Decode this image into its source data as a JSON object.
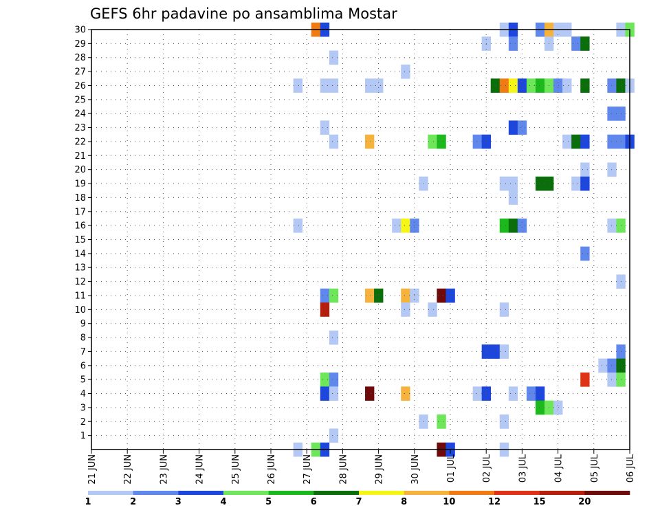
{
  "chart_data": {
    "type": "heatmap",
    "title": "GEFS 6hr padavine po ansamblima Mostar",
    "xlabel": "",
    "ylabel": "",
    "x_ticks": [
      "21 JUN",
      "22 JUN",
      "23 JUN",
      "24 JUN",
      "25 JUN",
      "26 JUN",
      "27 JUN",
      "28 JUN",
      "29 JUN",
      "30 JUN",
      "01 JUL",
      "02 JUL",
      "03 JUL",
      "04 JUL",
      "05 JUL",
      "06 JUL"
    ],
    "y_ticks": [
      "1",
      "2",
      "3",
      "4",
      "5",
      "6",
      "7",
      "8",
      "9",
      "10",
      "11",
      "12",
      "13",
      "14",
      "15",
      "16",
      "17",
      "18",
      "19",
      "20",
      "21",
      "22",
      "23",
      "24",
      "25",
      "26",
      "27",
      "28",
      "29",
      "30"
    ],
    "xlim": [
      0,
      60
    ],
    "ylim": [
      0,
      30
    ],
    "x_unit": "6-hour step from 21 JUN 00Z",
    "grid": true,
    "colorbar": {
      "labels": [
        "1",
        "2",
        "3",
        "4",
        "5",
        "6",
        "7",
        "8",
        "10",
        "12",
        "15",
        "20"
      ],
      "colors": [
        "#b4c8f5",
        "#5f87ec",
        "#1c46dc",
        "#6ee65a",
        "#1cb91c",
        "#0a6e0a",
        "#f5f516",
        "#f5b23c",
        "#f07a14",
        "#e03214",
        "#b41e0a",
        "#6e0a0a"
      ]
    },
    "cells": [
      [
        25,
        30,
        "orange"
      ],
      [
        26,
        30,
        "blue"
      ],
      [
        46,
        30,
        "pale"
      ],
      [
        47,
        30,
        "blue"
      ],
      [
        50,
        30,
        "mid"
      ],
      [
        51,
        30,
        "orange_light"
      ],
      [
        52,
        30,
        "pale"
      ],
      [
        53,
        30,
        "pale"
      ],
      [
        59,
        30,
        "pale"
      ],
      [
        60,
        30,
        "ltgreen"
      ],
      [
        44,
        29,
        "pale"
      ],
      [
        47,
        29,
        "mid"
      ],
      [
        51,
        29,
        "pale"
      ],
      [
        54,
        29,
        "mid"
      ],
      [
        55,
        29,
        "dkgreen"
      ],
      [
        27,
        28,
        "pale"
      ],
      [
        35,
        27,
        "pale"
      ],
      [
        23,
        26,
        "pale"
      ],
      [
        26,
        26,
        "pale"
      ],
      [
        27,
        26,
        "pale"
      ],
      [
        31,
        26,
        "pale"
      ],
      [
        32,
        26,
        "pale"
      ],
      [
        45,
        26,
        "dkgreen"
      ],
      [
        46,
        26,
        "orange"
      ],
      [
        47,
        26,
        "yellow"
      ],
      [
        48,
        26,
        "blue"
      ],
      [
        49,
        26,
        "ltgreen"
      ],
      [
        50,
        26,
        "green"
      ],
      [
        51,
        26,
        "ltgreen"
      ],
      [
        52,
        26,
        "mid"
      ],
      [
        53,
        26,
        "pale"
      ],
      [
        55,
        26,
        "dkgreen"
      ],
      [
        58,
        26,
        "mid"
      ],
      [
        59,
        26,
        "dkgreen"
      ],
      [
        60,
        26,
        "pale"
      ],
      [
        58,
        24,
        "mid"
      ],
      [
        59,
        24,
        "mid"
      ],
      [
        26,
        23,
        "pale"
      ],
      [
        47,
        23,
        "blue"
      ],
      [
        48,
        23,
        "mid"
      ],
      [
        27,
        22,
        "pale"
      ],
      [
        31,
        22,
        "orange_light"
      ],
      [
        38,
        22,
        "ltgreen"
      ],
      [
        39,
        22,
        "green"
      ],
      [
        43,
        22,
        "mid"
      ],
      [
        44,
        22,
        "blue"
      ],
      [
        53,
        22,
        "pale"
      ],
      [
        54,
        22,
        "dkgreen"
      ],
      [
        55,
        22,
        "blue"
      ],
      [
        58,
        22,
        "mid"
      ],
      [
        59,
        22,
        "mid"
      ],
      [
        60,
        22,
        "blue"
      ],
      [
        55,
        20,
        "pale"
      ],
      [
        58,
        20,
        "pale"
      ],
      [
        37,
        19,
        "pale"
      ],
      [
        46,
        19,
        "pale"
      ],
      [
        47,
        19,
        "pale"
      ],
      [
        50,
        19,
        "dkgreen"
      ],
      [
        51,
        19,
        "dkgreen"
      ],
      [
        54,
        19,
        "pale"
      ],
      [
        55,
        19,
        "blue"
      ],
      [
        47,
        18,
        "pale"
      ],
      [
        23,
        16,
        "pale"
      ],
      [
        34,
        16,
        "pale"
      ],
      [
        35,
        16,
        "yellow"
      ],
      [
        36,
        16,
        "mid"
      ],
      [
        46,
        16,
        "green"
      ],
      [
        47,
        16,
        "dkgreen"
      ],
      [
        48,
        16,
        "mid"
      ],
      [
        58,
        16,
        "pale"
      ],
      [
        59,
        16,
        "ltgreen"
      ],
      [
        55,
        14,
        "mid"
      ],
      [
        59,
        12,
        "pale"
      ],
      [
        26,
        11,
        "mid"
      ],
      [
        27,
        11,
        "ltgreen"
      ],
      [
        31,
        11,
        "orange_light"
      ],
      [
        32,
        11,
        "dkgreen"
      ],
      [
        35,
        11,
        "orange_light"
      ],
      [
        36,
        11,
        "pale"
      ],
      [
        39,
        11,
        "darkred"
      ],
      [
        40,
        11,
        "blue"
      ],
      [
        26,
        10,
        "red"
      ],
      [
        35,
        10,
        "pale"
      ],
      [
        38,
        10,
        "pale"
      ],
      [
        46,
        10,
        "pale"
      ],
      [
        27,
        8,
        "pale"
      ],
      [
        45,
        7,
        "blue"
      ],
      [
        46,
        7,
        "pale"
      ],
      [
        44,
        7,
        "blue"
      ],
      [
        59,
        7,
        "mid"
      ],
      [
        57,
        6,
        "pale"
      ],
      [
        58,
        6,
        "mid"
      ],
      [
        59,
        6,
        "dkgreen"
      ],
      [
        26,
        5,
        "ltgreen"
      ],
      [
        27,
        5,
        "mid"
      ],
      [
        55,
        5,
        "red_orange"
      ],
      [
        58,
        5,
        "pale"
      ],
      [
        59,
        5,
        "ltgreen"
      ],
      [
        26,
        4,
        "blue"
      ],
      [
        27,
        4,
        "pale"
      ],
      [
        31,
        4,
        "darkred"
      ],
      [
        35,
        4,
        "orange_light"
      ],
      [
        43,
        4,
        "pale"
      ],
      [
        44,
        4,
        "blue"
      ],
      [
        47,
        4,
        "pale"
      ],
      [
        49,
        4,
        "mid"
      ],
      [
        50,
        4,
        "blue"
      ],
      [
        50,
        3,
        "green"
      ],
      [
        51,
        3,
        "ltgreen"
      ],
      [
        52,
        3,
        "pale"
      ],
      [
        37,
        2,
        "pale"
      ],
      [
        39,
        2,
        "ltgreen"
      ],
      [
        46,
        2,
        "pale"
      ],
      [
        27,
        1,
        "pale"
      ],
      [
        23,
        0,
        "pale"
      ],
      [
        25,
        0,
        "ltgreen"
      ],
      [
        26,
        0,
        "blue"
      ],
      [
        39,
        0,
        "darkred"
      ],
      [
        40,
        0,
        "blue"
      ],
      [
        46,
        0,
        "pale"
      ]
    ]
  }
}
